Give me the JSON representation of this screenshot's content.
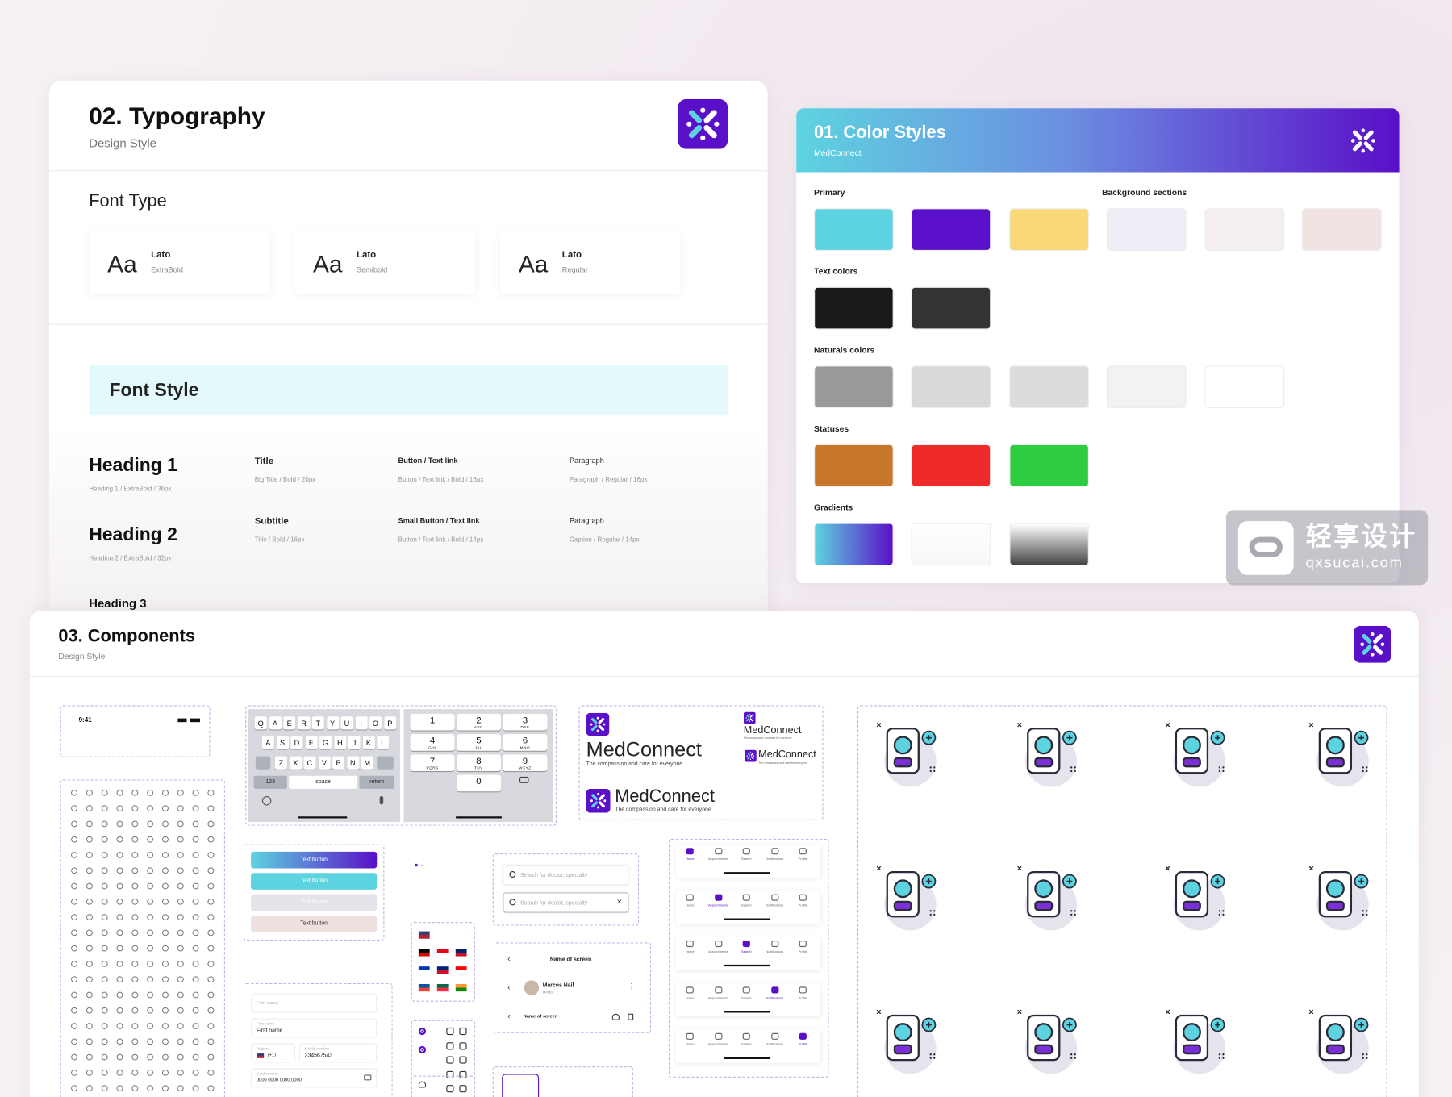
{
  "typography": {
    "title": "02. Typography",
    "subtitle": "Design Style",
    "font_type": "Font Type",
    "fonts": [
      {
        "sample": "Aa",
        "family": "Lato",
        "weight": "ExtraBold"
      },
      {
        "sample": "Aa",
        "family": "Lato",
        "weight": "Semibold"
      },
      {
        "sample": "Aa",
        "family": "Lato",
        "weight": "Regular"
      }
    ],
    "font_style": "Font Style",
    "headings": [
      {
        "name": "Heading 1",
        "spec": "Heading 1 / ExtraBold / 36px"
      },
      {
        "name": "Heading 2",
        "spec": "Heading 2 / ExtraBold / 32px"
      },
      {
        "name": "Heading 3"
      }
    ],
    "styles": [
      [
        {
          "name": "Title",
          "spec": "Big Title / Bold / 20px"
        },
        {
          "name": "Button / Text link",
          "spec": "Button / Text link / Bold / 16px"
        },
        {
          "name": "Paragraph",
          "spec": "Paragraph / Regular / 16px"
        }
      ],
      [
        {
          "name": "Subtitle",
          "spec": "Title / Bold / 16px"
        },
        {
          "name": "Small Button / Text link",
          "spec": "Button / Text link / Bold / 14px"
        },
        {
          "name": "Paragraph",
          "spec": "Caption / Regular / 14px"
        }
      ]
    ]
  },
  "colors": {
    "title": "01. Color Styles",
    "subtitle": "MedConnect",
    "groups": [
      {
        "label": "Primary",
        "colors": [
          "#5dd3e0",
          "#5a0fc8",
          "#fad878"
        ]
      },
      {
        "label": "Background sections",
        "colors": [
          "#efedf5",
          "#f6efef",
          "#f0e3e2"
        ]
      },
      {
        "label": "Text colors",
        "colors": [
          "#1a1a1a",
          "#333333"
        ]
      },
      {
        "label": "Naturals colors",
        "colors": [
          "#999999",
          "#d9d9d9",
          "#dcdcdc",
          "#f2f2f2",
          "#ffffff"
        ]
      },
      {
        "label": "Statuses",
        "colors": [
          "#c8762a",
          "#ee2a2a",
          "#2ecc40"
        ]
      },
      {
        "label": "Gradients",
        "gradients": [
          [
            "#5dd3e0",
            "#5a0fc8"
          ],
          [
            "#ffffff",
            "#f7f7f7"
          ],
          [
            "#ffffff",
            "#444444"
          ]
        ]
      }
    ]
  },
  "components": {
    "title": "03. Components",
    "subtitle": "Design Style",
    "status_time": "9:41",
    "keyboard": {
      "rows": [
        [
          "Q",
          "A",
          "E",
          "R",
          "T",
          "Y",
          "U",
          "I",
          "O",
          "P"
        ],
        [
          "A",
          "S",
          "D",
          "F",
          "G",
          "H",
          "J",
          "K",
          "L"
        ],
        [
          "Z",
          "X",
          "C",
          "V",
          "B",
          "N",
          "M"
        ]
      ],
      "bottom": [
        "123",
        "space",
        "return"
      ]
    },
    "numpad": [
      {
        "digit": "1"
      },
      {
        "digit": "2",
        "letters": "ABC"
      },
      {
        "digit": "3",
        "letters": "DEF"
      },
      {
        "digit": "4",
        "letters": "GHI"
      },
      {
        "digit": "5",
        "letters": "JKL"
      },
      {
        "digit": "6",
        "letters": "MNO"
      },
      {
        "digit": "7",
        "letters": "PQRS"
      },
      {
        "digit": "8",
        "letters": "TUV"
      },
      {
        "digit": "9",
        "letters": "WXYZ"
      },
      {
        "digit": "0"
      }
    ],
    "logo": {
      "name": "MedConnect",
      "tagline": "The compassion and care for everyone"
    },
    "buttons": [
      "Text button",
      "Text button",
      "Text button",
      "Text button"
    ],
    "search": [
      "Search for doctor, specialty",
      "Search for doctor, specialty"
    ],
    "nav": {
      "screen": "Name of screen",
      "person": "Marcos Nail",
      "role": "Doctor",
      "screen2": "Name of screen"
    },
    "tabs": [
      "Home",
      "Appointments",
      "Search",
      "Notifications",
      "Profile"
    ],
    "form": {
      "first_label": "First name",
      "first_label2": "First name",
      "first_value": "First name",
      "region": "Region",
      "code": "(+1)",
      "mobile_label": "Mobile number",
      "mobile": "234567543",
      "card_label": "Card number",
      "card": "0000 0000 0000 0000"
    }
  },
  "watermark": {
    "name": "轻享设计",
    "url": "qxsucai.com"
  }
}
